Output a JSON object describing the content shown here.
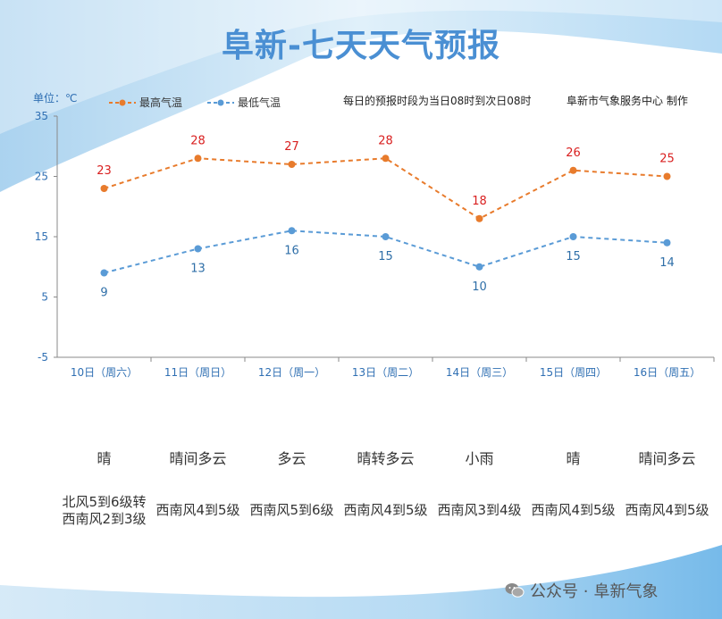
{
  "title": "阜新-七天天气预报",
  "unit_label": "单位：℃",
  "legend": {
    "high": "最高气温",
    "low": "最低气温"
  },
  "note": "每日的预报时段为当日08时到次日08时",
  "credit": "阜新市气象服务中心 制作",
  "footer": {
    "prefix": "公众号 · ",
    "name": "阜新气象",
    "icon": "wechat-icon"
  },
  "colors": {
    "high": "#e87b2c",
    "low": "#5a9bd6",
    "high_label": "#d92020",
    "low_label": "#2f6fa8",
    "title": "#4a8fd3"
  },
  "conditions": [
    "晴",
    "晴间多云",
    "多云",
    "晴转多云",
    "小雨",
    "晴",
    "晴间多云"
  ],
  "winds": [
    [
      "北风5到6级转",
      "西南风2到3级"
    ],
    [
      "西南风4到5级"
    ],
    [
      "西南风5到6级"
    ],
    [
      "西南风4到5级"
    ],
    [
      "西南风3到4级"
    ],
    [
      "西南风4到5级"
    ],
    [
      "西南风4到5级"
    ]
  ],
  "chart_data": {
    "type": "line",
    "categories": [
      "10日（周六）",
      "11日（周日）",
      "12日（周一）",
      "13日（周二）",
      "14日（周三）",
      "15日（周四）",
      "16日（周五）"
    ],
    "series": [
      {
        "name": "最高气温",
        "values": [
          23,
          28,
          27,
          28,
          18,
          26,
          25
        ]
      },
      {
        "name": "最低气温",
        "values": [
          9,
          13,
          16,
          15,
          10,
          15,
          14
        ]
      }
    ],
    "y_ticks": [
      35,
      25,
      15,
      5,
      -5
    ],
    "ylim": [
      -5,
      35
    ],
    "grid": false,
    "legend_position": "top-left",
    "line_style": "dashed"
  }
}
